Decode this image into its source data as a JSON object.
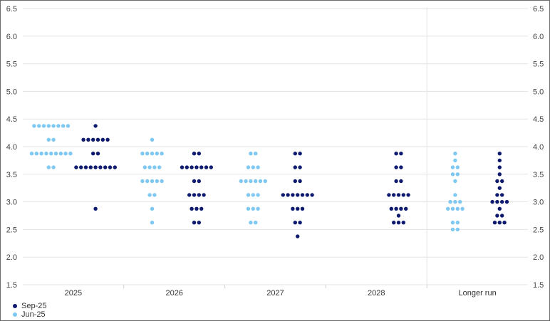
{
  "chart_data": {
    "type": "scatter",
    "title": "",
    "xlabel": "",
    "ylabel": "",
    "ylim": [
      1.5,
      6.5
    ],
    "yticks": [
      "1.5",
      "2.0",
      "2.5",
      "3.0",
      "3.5",
      "4.0",
      "4.5",
      "5.0",
      "5.5",
      "6.0",
      "6.5"
    ],
    "categories": [
      "2025",
      "2026",
      "2027",
      "2028",
      "Longer run"
    ],
    "grid": true,
    "legend_position": "bottom-left",
    "series": [
      {
        "name": "Jun-25",
        "color": "#7ec8f2",
        "points": {
          "2025": [
            [
              4.375,
              8
            ],
            [
              4.125,
              2
            ],
            [
              3.875,
              9
            ],
            [
              3.625,
              2
            ]
          ],
          "2026": [
            [
              4.125,
              1
            ],
            [
              3.875,
              5
            ],
            [
              3.625,
              4
            ],
            [
              3.375,
              5
            ],
            [
              3.125,
              2
            ],
            [
              2.875,
              1
            ],
            [
              2.625,
              1
            ]
          ],
          "2027": [
            [
              3.875,
              2
            ],
            [
              3.625,
              3
            ],
            [
              3.375,
              6
            ],
            [
              3.125,
              3
            ],
            [
              2.875,
              3
            ],
            [
              2.625,
              2
            ]
          ],
          "2028": [],
          "Longer run": [
            [
              3.875,
              1
            ],
            [
              3.75,
              1
            ],
            [
              3.625,
              2
            ],
            [
              3.5,
              2
            ],
            [
              3.375,
              1
            ],
            [
              3.125,
              1
            ],
            [
              3.0,
              3
            ],
            [
              2.875,
              4
            ],
            [
              2.625,
              2
            ],
            [
              2.5,
              2
            ]
          ]
        }
      },
      {
        "name": "Sep-25",
        "color": "#0d1a6e",
        "points": {
          "2025": [
            [
              4.375,
              1
            ],
            [
              4.125,
              6
            ],
            [
              3.875,
              2
            ],
            [
              3.625,
              9
            ],
            [
              2.875,
              1
            ]
          ],
          "2026": [
            [
              3.875,
              2
            ],
            [
              3.625,
              7
            ],
            [
              3.375,
              2
            ],
            [
              3.125,
              4
            ],
            [
              2.875,
              3
            ],
            [
              2.625,
              2
            ]
          ],
          "2027": [
            [
              3.875,
              2
            ],
            [
              3.625,
              2
            ],
            [
              3.375,
              2
            ],
            [
              3.125,
              7
            ],
            [
              2.875,
              3
            ],
            [
              2.625,
              2
            ],
            [
              2.375,
              1
            ]
          ],
          "2028": [
            [
              3.875,
              2
            ],
            [
              3.625,
              2
            ],
            [
              3.375,
              2
            ],
            [
              3.125,
              5
            ],
            [
              2.875,
              4
            ],
            [
              2.75,
              1
            ],
            [
              2.625,
              3
            ]
          ],
          "Longer run": [
            [
              3.875,
              1
            ],
            [
              3.75,
              1
            ],
            [
              3.625,
              1
            ],
            [
              3.5,
              1
            ],
            [
              3.375,
              2
            ],
            [
              3.25,
              1
            ],
            [
              3.125,
              2
            ],
            [
              3.0,
              4
            ],
            [
              2.875,
              1
            ],
            [
              2.75,
              2
            ],
            [
              2.625,
              3
            ]
          ]
        }
      }
    ]
  }
}
